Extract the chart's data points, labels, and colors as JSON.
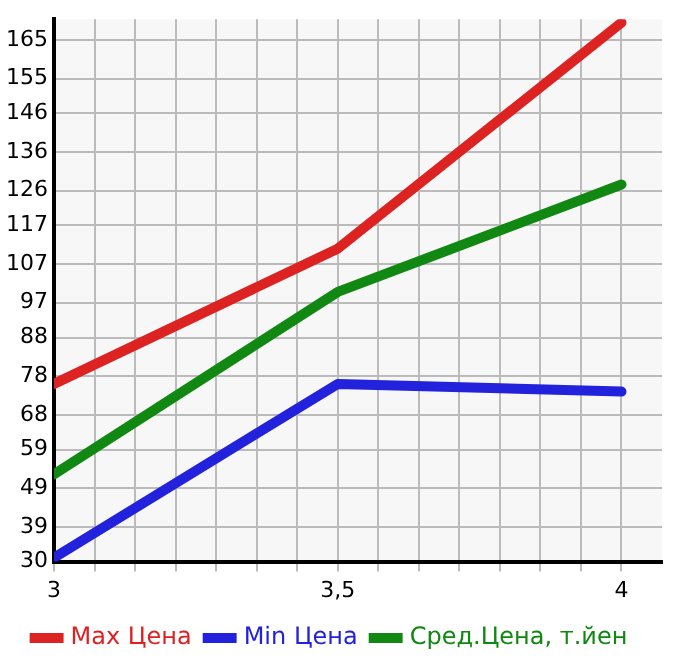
{
  "chart_data": {
    "type": "line",
    "x": [
      3,
      3.5,
      4
    ],
    "series": [
      {
        "name": "Max Цена",
        "color": "#dd2222",
        "values": [
          76,
          111,
          169.5
        ]
      },
      {
        "name": "Min Цена",
        "color": "#2222dd",
        "values": [
          31,
          76,
          74
        ]
      },
      {
        "name": "Сред.Цена, т.йен",
        "color": "#118811",
        "values": [
          52.6,
          99.8,
          127.6
        ]
      }
    ],
    "xlim": [
      3,
      4.0714
    ],
    "xticks": [
      {
        "value": 3,
        "label": "3"
      },
      {
        "value": 3.0714,
        "label": null
      },
      {
        "value": 3.1429,
        "label": null
      },
      {
        "value": 3.2143,
        "label": null
      },
      {
        "value": 3.2857,
        "label": null
      },
      {
        "value": 3.3571,
        "label": null
      },
      {
        "value": 3.4286,
        "label": null
      },
      {
        "value": 3.5,
        "label": "3,5"
      },
      {
        "value": 3.5714,
        "label": null
      },
      {
        "value": 3.6429,
        "label": null
      },
      {
        "value": 3.7143,
        "label": null
      },
      {
        "value": 3.7857,
        "label": null
      },
      {
        "value": 3.8571,
        "label": null
      },
      {
        "value": 3.9286,
        "label": null
      },
      {
        "value": 4,
        "label": "4"
      }
    ],
    "ylim": [
      30,
      170.4
    ],
    "yticks": [
      30,
      39,
      49,
      59,
      68,
      78,
      88,
      97,
      107,
      117,
      126,
      136,
      146,
      155,
      165
    ],
    "grid": true,
    "legend": "bottom",
    "marker": "none",
    "line_style": "solid"
  }
}
